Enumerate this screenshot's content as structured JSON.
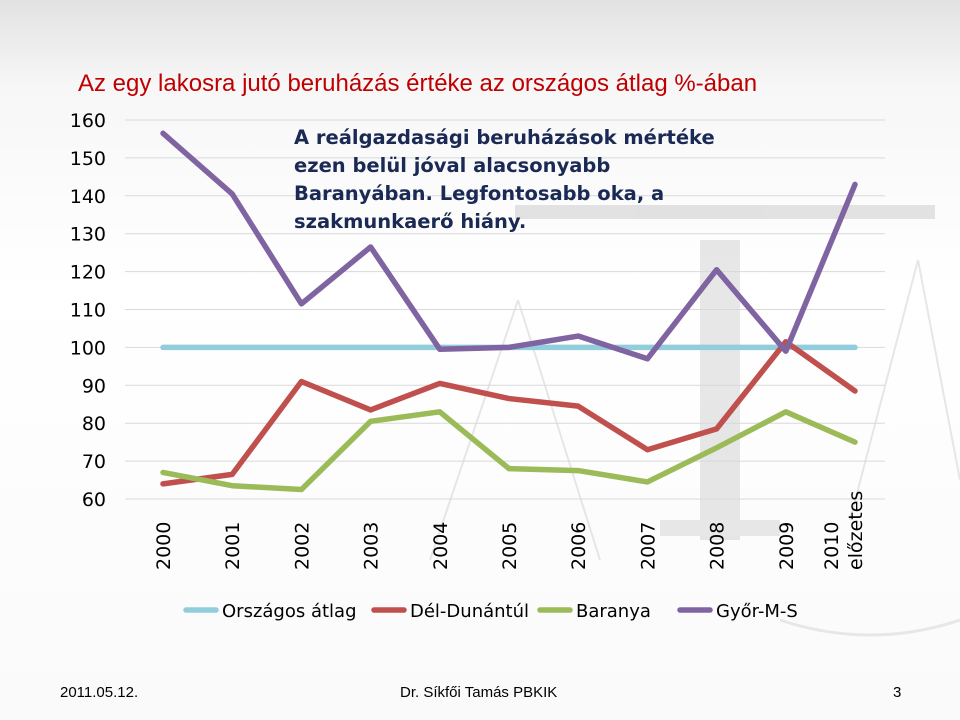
{
  "title": "Az egy lakosra jutó beruházás értéke az országos átlag %-ában",
  "annotation": "A reálgazdasági beruházások mértéke\nezen belül jóval alacsonyabb\nBaranyában. Legfontosabb oka, a\nszakmunkaerő hiány.",
  "footer": {
    "date": "2011.05.12.",
    "author": "Dr. Síkfői Tamás PBKIK",
    "page": "3"
  },
  "chart_data": {
    "type": "line",
    "categories": [
      "2000",
      "2001",
      "2002",
      "2003",
      "2004",
      "2005",
      "2006",
      "2007",
      "2008",
      "2009",
      "2010 előzetes"
    ],
    "category_lines": [
      [
        "2000"
      ],
      [
        "2001"
      ],
      [
        "2002"
      ],
      [
        "2003"
      ],
      [
        "2004"
      ],
      [
        "2005"
      ],
      [
        "2006"
      ],
      [
        "2007"
      ],
      [
        "2008"
      ],
      [
        "2009"
      ],
      [
        "2010",
        "előzetes"
      ]
    ],
    "ylim": [
      60,
      160
    ],
    "yticks": [
      60,
      70,
      80,
      90,
      100,
      110,
      120,
      130,
      140,
      150,
      160
    ],
    "grid": true,
    "legend_position": "bottom",
    "series": [
      {
        "name": "Országos átlag",
        "color": "#92cddc",
        "values": [
          100,
          100,
          100,
          100,
          100,
          100,
          100,
          100,
          100,
          100,
          100
        ]
      },
      {
        "name": "Dél-Dunántúl",
        "color": "#c0504d",
        "values": [
          64,
          66.5,
          91,
          83.5,
          90.5,
          86.5,
          84.5,
          73,
          78.5,
          101.5,
          88.5
        ]
      },
      {
        "name": "Baranya",
        "color": "#9bbb59",
        "values": [
          67,
          63.5,
          62.5,
          80.5,
          83,
          68,
          67.5,
          64.5,
          73.5,
          83,
          75
        ]
      },
      {
        "name": "Győr-M-S",
        "color": "#8064a2",
        "values": [
          156.5,
          140.5,
          111.5,
          126.5,
          99.5,
          100,
          103,
          97,
          120.5,
          99,
          143
        ]
      }
    ]
  }
}
